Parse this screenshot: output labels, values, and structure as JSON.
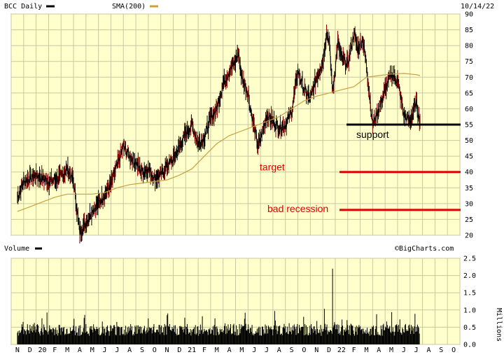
{
  "chart_data": {
    "type": "line",
    "ticker_label": "BCC Daily",
    "sma_label": "SMA(200)",
    "date": "10/14/22",
    "source": "©BigCharts.com",
    "volume_label": "Volume",
    "volume_units": "Millions",
    "colors": {
      "background": "#ffffcc",
      "grid": "#c8c8a0",
      "price": "#000000",
      "price_up": "#8b0000",
      "sma": "#c8a040",
      "volume": "#000000",
      "annotation": "#e00000"
    },
    "price_axis": {
      "min": 20,
      "max": 90,
      "ticks": [
        "20",
        "25",
        "30",
        "35",
        "40",
        "45",
        "50",
        "55",
        "60",
        "65",
        "70",
        "75",
        "80",
        "85",
        "90"
      ]
    },
    "volume_axis": {
      "min": 0,
      "max": 2.5,
      "ticks": [
        "0.0",
        "0.5",
        "1.0",
        "1.5",
        "2.0",
        "2.5"
      ]
    },
    "x_labels": [
      "N",
      "D",
      "20",
      "F",
      "M",
      "A",
      "M",
      "J",
      "J",
      "A",
      "S",
      "O",
      "N",
      "D",
      "21",
      "F",
      "M",
      "A",
      "M",
      "J",
      "J",
      "A",
      "S",
      "O",
      "N",
      "D",
      "22",
      "F",
      "M",
      "A",
      "M",
      "J",
      "J",
      "A",
      "S",
      "O"
    ],
    "price": [
      [
        0,
        32
      ],
      [
        0.5,
        37
      ],
      [
        1,
        38
      ],
      [
        1.5,
        39
      ],
      [
        2,
        38
      ],
      [
        2.5,
        37
      ],
      [
        3,
        37.5
      ],
      [
        3.5,
        38.5
      ],
      [
        4,
        41
      ],
      [
        4.5,
        37
      ],
      [
        5,
        21
      ],
      [
        5.5,
        24
      ],
      [
        6,
        28
      ],
      [
        6.5,
        30
      ],
      [
        7,
        33
      ],
      [
        7.5,
        36
      ],
      [
        8,
        42
      ],
      [
        8.5,
        48
      ],
      [
        9,
        45
      ],
      [
        9.5,
        43
      ],
      [
        10,
        40
      ],
      [
        10.5,
        41
      ],
      [
        11,
        38
      ],
      [
        11.5,
        39
      ],
      [
        12,
        42
      ],
      [
        12.5,
        44
      ],
      [
        13,
        48
      ],
      [
        13.5,
        52
      ],
      [
        14,
        55
      ],
      [
        14.5,
        49
      ],
      [
        15,
        51
      ],
      [
        15.5,
        57
      ],
      [
        16,
        60
      ],
      [
        16.5,
        68
      ],
      [
        17,
        72
      ],
      [
        17.5,
        75
      ],
      [
        17.7,
        78
      ],
      [
        18,
        70
      ],
      [
        18.5,
        65
      ],
      [
        18.7,
        60
      ],
      [
        19,
        54
      ],
      [
        19.3,
        48
      ],
      [
        19.7,
        53
      ],
      [
        20,
        58
      ],
      [
        20.5,
        56
      ],
      [
        21,
        54
      ],
      [
        21.5,
        55
      ],
      [
        22,
        59
      ],
      [
        22.5,
        72
      ],
      [
        23,
        66
      ],
      [
        23.5,
        63
      ],
      [
        24,
        70
      ],
      [
        24.5,
        75
      ],
      [
        24.8,
        84
      ],
      [
        25,
        82
      ],
      [
        25.3,
        65
      ],
      [
        25.7,
        81
      ],
      [
        26,
        76
      ],
      [
        26.5,
        74
      ],
      [
        27,
        84
      ],
      [
        27.3,
        79
      ],
      [
        27.7,
        82
      ],
      [
        28,
        74
      ],
      [
        28.5,
        55
      ],
      [
        29,
        60
      ],
      [
        29.5,
        66
      ],
      [
        30,
        71
      ],
      [
        30.5,
        69
      ],
      [
        31,
        58
      ],
      [
        31.5,
        56
      ],
      [
        32,
        62
      ],
      [
        32.3,
        56
      ]
    ],
    "sma": [
      [
        0,
        27.5
      ],
      [
        1,
        29
      ],
      [
        2,
        30.5
      ],
      [
        3,
        32
      ],
      [
        4,
        33
      ],
      [
        5,
        33
      ],
      [
        6,
        33
      ],
      [
        7,
        33.5
      ],
      [
        8,
        35
      ],
      [
        9,
        36
      ],
      [
        10,
        36.5
      ],
      [
        11,
        37
      ],
      [
        12,
        37.5
      ],
      [
        13,
        39
      ],
      [
        14,
        41
      ],
      [
        15,
        45
      ],
      [
        16,
        49
      ],
      [
        17,
        51.5
      ],
      [
        18,
        53
      ],
      [
        19,
        54.5
      ],
      [
        20,
        56
      ],
      [
        21,
        57.5
      ],
      [
        22,
        60
      ],
      [
        23,
        62.5
      ],
      [
        24,
        64
      ],
      [
        25,
        65
      ],
      [
        26,
        66
      ],
      [
        27,
        67
      ],
      [
        28,
        70
      ],
      [
        29,
        70.5
      ],
      [
        30,
        71
      ],
      [
        31,
        71.2
      ],
      [
        32,
        70.8
      ],
      [
        32.3,
        70.5
      ]
    ],
    "volume_spike": {
      "index": 25.3,
      "value": 2.2
    },
    "annotations": {
      "support": {
        "label": "support",
        "value": 55
      },
      "target": {
        "label": "target",
        "value": 40
      },
      "recession": {
        "label": "bad recession",
        "value": 28
      }
    }
  }
}
